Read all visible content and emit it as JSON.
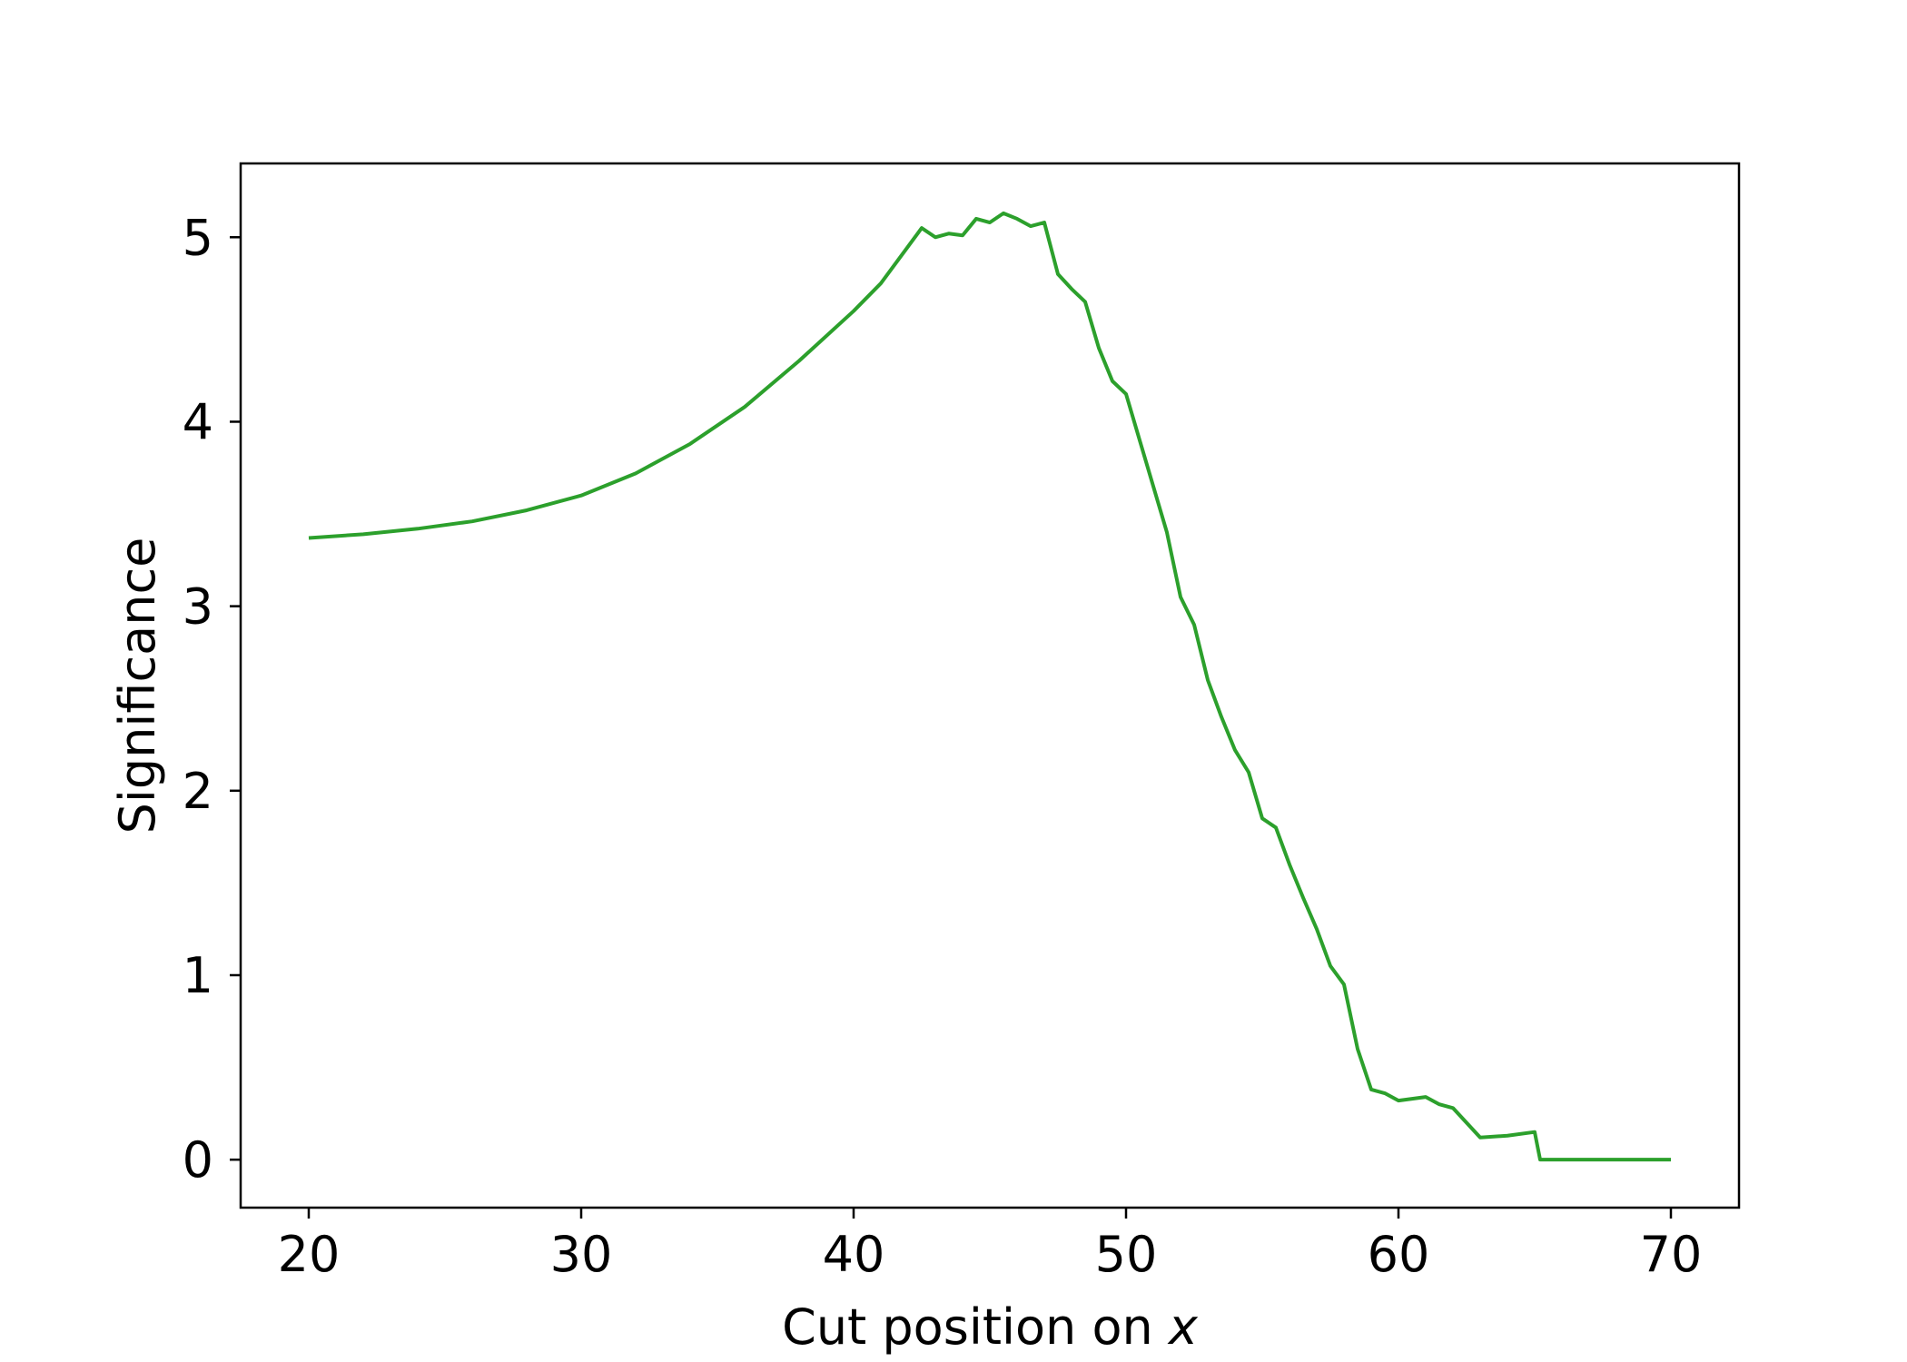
{
  "chart_data": {
    "type": "line",
    "title": "",
    "xlabel": "Cut position on",
    "xlabel_var": "x",
    "ylabel": "Significance",
    "xlim": [
      17.5,
      72.5
    ],
    "ylim": [
      -0.26,
      5.4
    ],
    "xticks": [
      20,
      30,
      40,
      50,
      60,
      70
    ],
    "yticks": [
      0,
      1,
      2,
      3,
      4,
      5
    ],
    "grid": false,
    "legend": "none",
    "series": [
      {
        "color": "#2ca02c",
        "x": [
          20,
          22,
          24,
          26,
          28,
          30,
          32,
          34,
          36,
          38,
          40,
          41,
          42,
          42.5,
          43,
          43.5,
          44,
          44.5,
          45,
          45.5,
          46,
          46.5,
          47,
          47.5,
          48,
          48.5,
          49,
          49.5,
          50,
          50.5,
          51,
          51.5,
          52,
          52.5,
          53,
          53.5,
          54,
          54.5,
          55,
          55.5,
          56,
          56.5,
          57,
          57.5,
          58,
          58.5,
          59,
          59.5,
          60,
          61,
          61.5,
          62,
          62.5,
          63,
          64,
          65,
          65.2,
          66,
          68,
          70
        ],
        "y": [
          3.37,
          3.39,
          3.42,
          3.46,
          3.52,
          3.6,
          3.72,
          3.88,
          4.08,
          4.33,
          4.6,
          4.75,
          4.95,
          5.05,
          5.0,
          5.02,
          5.01,
          5.1,
          5.08,
          5.13,
          5.1,
          5.06,
          5.08,
          4.8,
          4.72,
          4.65,
          4.4,
          4.22,
          4.15,
          3.9,
          3.65,
          3.4,
          3.05,
          2.9,
          2.6,
          2.4,
          2.22,
          2.1,
          1.85,
          1.8,
          1.6,
          1.42,
          1.25,
          1.05,
          0.95,
          0.6,
          0.38,
          0.36,
          0.32,
          0.34,
          0.3,
          0.28,
          0.2,
          0.12,
          0.13,
          0.15,
          0.0,
          0.0,
          0.0,
          0.0
        ]
      }
    ]
  }
}
